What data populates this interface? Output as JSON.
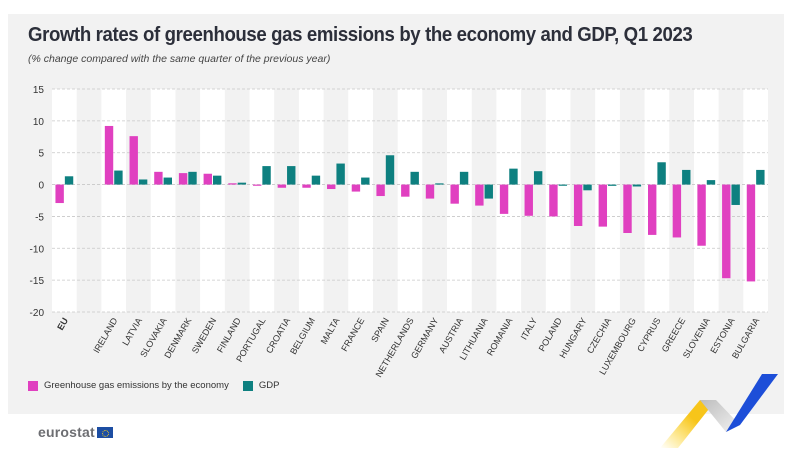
{
  "header": {
    "title": "Growth rates of greenhouse gas emissions by the economy and GDP, Q1 2023",
    "subtitle": "(% change compared with the same quarter of the previous year)"
  },
  "legend": {
    "ghg_label": "Greenhouse gas emissions by the economy",
    "gdp_label": "GDP"
  },
  "footer": {
    "logo_text": "eurostat"
  },
  "colors": {
    "ghg": "#e040c0",
    "gdp": "#0e8080",
    "panel": "#f2f2f2",
    "band": "#ffffff"
  },
  "chart_data": {
    "type": "bar",
    "title": "Growth rates of greenhouse gas emissions by the economy and GDP, Q1 2023",
    "subtitle": "(% change compared with the same quarter of the previous year)",
    "xlabel": "",
    "ylabel": "",
    "ylim": [
      -20,
      15
    ],
    "yticks": [
      15,
      10,
      5,
      0,
      -5,
      -10,
      -15,
      -20
    ],
    "grid": true,
    "legend_position": "bottom-left",
    "categories": [
      "EU",
      "",
      "IRELAND",
      "LATVIA",
      "SLOVAKIA",
      "DENMARK",
      "SWEDEN",
      "FINLAND",
      "PORTUGAL",
      "CROATIA",
      "BELGIUM",
      "MALTA",
      "FRANCE",
      "SPAIN",
      "NETHERLANDS",
      "GERMANY",
      "AUSTRIA",
      "LITHUANIA",
      "ROMANIA",
      "ITALY",
      "POLAND",
      "HUNGARY",
      "CZECHIA",
      "LUXEMBOURG",
      "CYPRUS",
      "GREECE",
      "SLOVENIA",
      "ESTONIA",
      "BULGARIA"
    ],
    "series": [
      {
        "name": "Greenhouse gas emissions by the economy",
        "values": [
          -2.9,
          null,
          9.2,
          7.6,
          2.0,
          1.8,
          1.7,
          0.2,
          -0.1,
          -0.5,
          -0.5,
          -0.7,
          -1.1,
          -1.8,
          -1.9,
          -2.2,
          -3.0,
          -3.3,
          -4.6,
          -4.9,
          -5.0,
          -6.5,
          -6.6,
          -7.6,
          -7.9,
          -8.3,
          -9.6,
          -14.7,
          -15.2
        ]
      },
      {
        "name": "GDP",
        "values": [
          1.3,
          null,
          2.2,
          0.8,
          1.1,
          2.0,
          1.4,
          0.3,
          2.9,
          2.9,
          1.4,
          3.3,
          1.1,
          4.6,
          2.0,
          0.1,
          2.0,
          -2.2,
          2.5,
          2.1,
          -0.1,
          -0.9,
          -0.2,
          -0.3,
          3.5,
          2.3,
          0.7,
          -3.2,
          2.3
        ]
      }
    ]
  }
}
